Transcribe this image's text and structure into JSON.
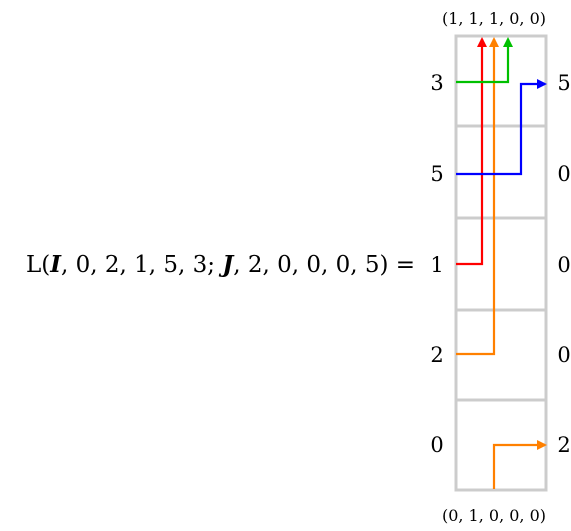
{
  "diagram": {
    "equation": {
      "prefix": "L(",
      "I": "I",
      "first_values": ", 0, 2, 1, 5, 3; ",
      "J": "J",
      "second_values": ", 2, 0, 0, 0, 5) ="
    },
    "top_tuple": "(1, 1, 1, 0, 0)",
    "bottom_tuple": "(0, 1, 0, 0, 0)",
    "left_labels": [
      "3",
      "5",
      "1",
      "2",
      "0"
    ],
    "right_labels": [
      "5",
      "0",
      "0",
      "0",
      "2"
    ],
    "colors": {
      "cell_border": "#cccccc",
      "red": "#ff0000",
      "orange": "#ff8000",
      "green": "#00c000",
      "blue": "#0000ff"
    }
  }
}
